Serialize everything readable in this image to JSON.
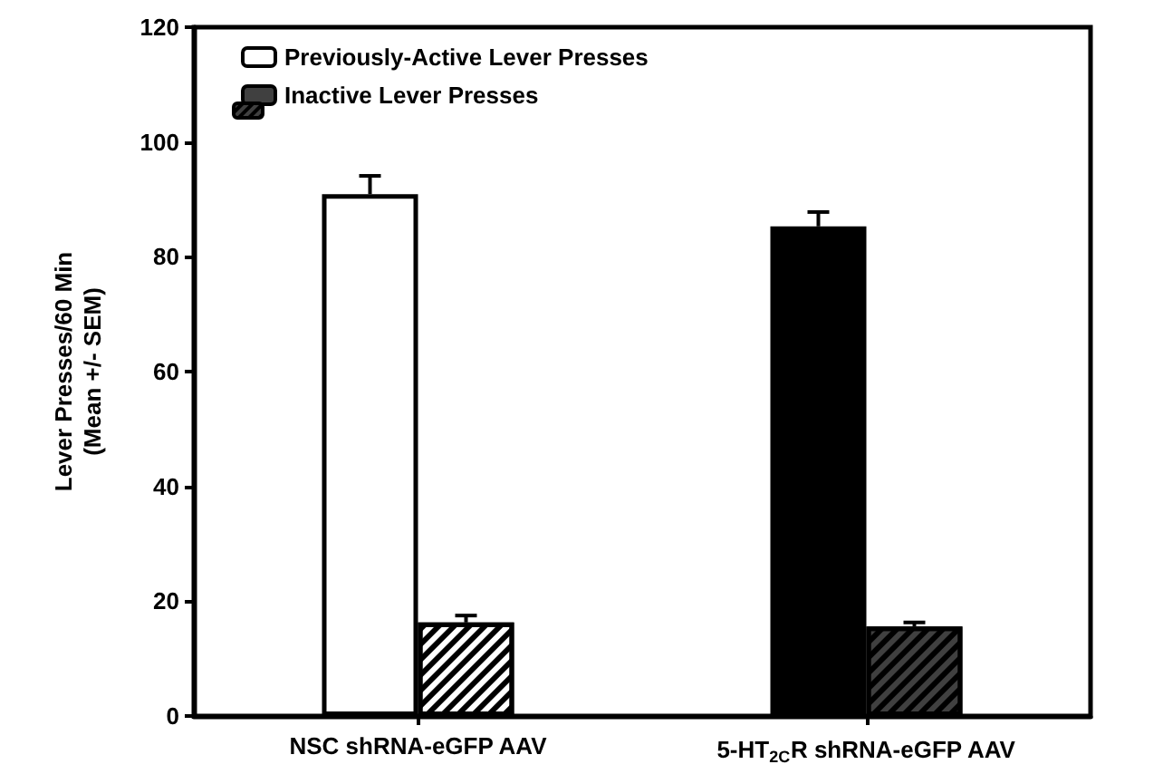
{
  "chart_data": {
    "type": "bar",
    "ylabel": "Lever Presses/60 Min\n(Mean +/- SEM)",
    "categories": [
      "NSC shRNA-eGFP AAV",
      "5-HT$_{2C}$R shRNA-eGFP AAV"
    ],
    "series": [
      {
        "name": "Previously-Active Lever Presses",
        "color": "#ffffff",
        "colors": [
          "#ffffff",
          "#000000"
        ],
        "values": [
          90.9,
          85.3
        ],
        "errors": [
          [
            90.9,
            94.1
          ],
          [
            85.3,
            87.8
          ]
        ]
      },
      {
        "name": "Inactive Lever Presses",
        "color": "#404040",
        "colors": [
          "#ffffff",
          "#404040"
        ],
        "values": [
          16.3,
          15.6
        ],
        "errors": [
          [
            16.3,
            17.5
          ],
          [
            15.6,
            16.3
          ]
        ]
      }
    ],
    "ylim": [
      0,
      120
    ],
    "yticks": [
      0,
      20,
      40,
      60,
      80,
      100,
      120
    ],
    "grid": false,
    "legend": "top left"
  }
}
